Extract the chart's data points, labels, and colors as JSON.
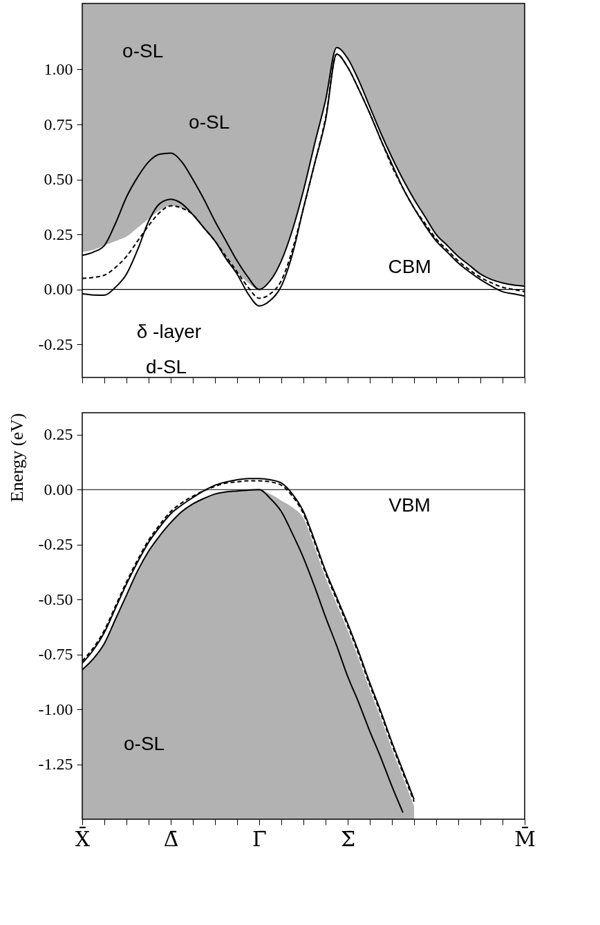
{
  "chart_data": [
    {
      "type": "line",
      "categories": [
        null,
        null,
        null,
        null,
        null,
        null,
        null,
        null,
        null,
        null,
        null,
        null,
        null,
        null,
        null,
        null,
        null,
        null,
        null,
        null,
        null,
        null,
        null,
        null,
        null,
        null,
        null,
        null,
        null,
        null,
        null,
        null,
        null,
        null,
        null,
        null,
        null,
        null,
        null,
        null,
        null
      ],
      "ylim": [
        -0.4,
        1.3
      ],
      "yticks": [
        {
          "value": -0.25,
          "label": "-0.25"
        },
        {
          "value": 0,
          "label": "0.00"
        },
        {
          "value": 0.25,
          "label": "0.25"
        },
        {
          "value": 0.5,
          "label": "0.50"
        },
        {
          "value": 0.75,
          "label": "0.75"
        },
        {
          "value": 1,
          "label": "1.00"
        }
      ],
      "tick_labels": "y",
      "grid": false,
      "series": [
        {
          "type": "line",
          "color": "#000000",
          "line_style": "solid",
          "values": [
            0.155,
            0.17,
            0.2,
            0.3,
            0.42,
            0.51,
            0.58,
            0.615,
            0.62,
            0.58,
            0.5,
            0.41,
            0.31,
            0.22,
            0.13,
            0.055,
            0,
            0.04,
            0.13,
            0.27,
            0.45,
            0.66,
            0.86,
            1.1,
            1.05,
            0.95,
            0.83,
            0.71,
            0.6,
            0.5,
            0.41,
            0.33,
            0.25,
            0.2,
            0.15,
            0.11,
            0.07,
            0.045,
            0.03,
            0.02,
            0.015
          ],
          "lower": [
            0.17,
            0.18,
            0.2,
            0.22,
            0.24,
            0.28,
            0.32,
            0.36,
            0.38,
            0.37,
            0.34,
            0.28,
            0.22,
            0.15,
            0.08,
            0.03,
            0,
            0.04,
            0.13,
            0.27,
            0.45,
            0.66,
            0.86,
            1.1,
            1.05,
            0.95,
            0.83,
            0.71,
            0.6,
            0.5,
            0.41,
            0.33,
            0.25,
            0.2,
            0.15,
            0.11,
            0.07,
            0.045,
            0.03,
            0.02,
            0.015
          ],
          "upper": [
            1.3,
            1.3,
            1.3,
            1.3,
            1.3,
            1.3,
            1.3,
            1.3,
            1.3,
            1.3,
            1.3,
            1.3,
            1.3,
            1.3,
            1.3,
            1.3,
            1.3,
            1.3,
            1.3,
            1.3,
            1.3,
            1.3,
            1.3,
            1.3,
            1.3,
            1.3,
            1.3,
            1.3,
            1.3,
            1.3,
            1.3,
            1.3,
            1.3,
            1.3,
            1.3,
            1.3,
            1.3,
            1.3,
            1.3,
            1.3,
            1.3
          ]
        },
        {
          "type": "line",
          "color": "#000000",
          "line_style": "dashed",
          "values": [
            0.05,
            0.055,
            0.065,
            0.1,
            0.15,
            0.22,
            0.29,
            0.35,
            0.38,
            0.37,
            0.34,
            0.28,
            0.22,
            0.15,
            0.08,
            0.01,
            -0.04,
            -0.02,
            0.04,
            0.18,
            0.37,
            0.57,
            0.78,
            1.07,
            1.01,
            0.91,
            0.8,
            0.68,
            0.56,
            0.46,
            0.37,
            0.3,
            0.23,
            0.18,
            0.13,
            0.09,
            0.055,
            0.03,
            0.01,
            0,
            -0.01
          ]
        },
        {
          "type": "line",
          "color": "#000000",
          "line_style": "solid",
          "values": [
            -0.02,
            -0.025,
            -0.026,
            0.01,
            0.07,
            0.18,
            0.31,
            0.39,
            0.41,
            0.39,
            0.34,
            0.28,
            0.22,
            0.14,
            0.07,
            -0.02,
            -0.075,
            -0.05,
            0.015,
            0.16,
            0.37,
            0.57,
            0.77,
            1.07,
            1.01,
            0.91,
            0.8,
            0.68,
            0.57,
            0.46,
            0.37,
            0.29,
            0.22,
            0.17,
            0.12,
            0.08,
            0.045,
            0.015,
            -0.01,
            -0.02,
            -0.03
          ]
        }
      ],
      "ref_lines": [
        {
          "axis": "y",
          "value": 0,
          "color": "#000000"
        }
      ],
      "annotations": [
        "o-SL",
        "o-SL",
        "δ -layer",
        "CBM",
        "d-SL"
      ]
    },
    {
      "type": "line",
      "categories": [
        "X̄",
        null,
        null,
        null,
        null,
        null,
        null,
        null,
        "Δ̄",
        null,
        null,
        null,
        null,
        null,
        null,
        null,
        "Γ̄",
        null,
        null,
        null,
        null,
        null,
        null,
        null,
        "Σ̄",
        null,
        null,
        null,
        null,
        null,
        null,
        null,
        null,
        null,
        null,
        null,
        null,
        null,
        null,
        null,
        "M̄"
      ],
      "ylim": [
        -1.5,
        0.35
      ],
      "ylabel": "Energy  (eV)",
      "yticks": [
        {
          "value": -1.25,
          "label": "-1.25"
        },
        {
          "value": -1,
          "label": "-1.00"
        },
        {
          "value": -0.75,
          "label": "-0.75"
        },
        {
          "value": -0.5,
          "label": "-0.50"
        },
        {
          "value": -0.25,
          "label": "-0.25"
        },
        {
          "value": 0,
          "label": "0.00"
        },
        {
          "value": 0.25,
          "label": "0.25"
        }
      ],
      "grid": false,
      "series": [
        {
          "type": "line",
          "color": "#000000",
          "line_style": "solid",
          "values": [
            -0.82,
            -0.77,
            -0.7,
            -0.59,
            -0.48,
            -0.37,
            -0.28,
            -0.21,
            -0.15,
            -0.1,
            -0.065,
            -0.04,
            -0.02,
            -0.01,
            -0.006,
            -0.002,
            0,
            -0.04,
            -0.1,
            -0.2,
            -0.31,
            -0.44,
            -0.58,
            -0.71,
            -0.85,
            -0.97,
            -1.1,
            -1.22,
            -1.35,
            -1.47,
            null,
            null,
            null,
            null,
            null,
            null,
            null,
            null,
            null,
            null,
            null
          ],
          "upper": [
            -0.82,
            -0.77,
            -0.7,
            -0.59,
            -0.48,
            -0.37,
            -0.28,
            -0.21,
            -0.15,
            -0.1,
            -0.065,
            -0.04,
            -0.02,
            -0.01,
            -0.006,
            -0.002,
            0,
            -0.02,
            -0.05,
            -0.08,
            -0.13,
            -0.26,
            -0.4,
            -0.52,
            -0.64,
            -0.77,
            -0.91,
            -1.04,
            -1.18,
            -1.31,
            -1.44,
            null,
            null,
            null,
            null,
            null,
            null,
            null,
            null,
            null,
            null
          ],
          "lower": [
            -1.5,
            -1.5,
            -1.5,
            -1.5,
            -1.5,
            -1.5,
            -1.5,
            -1.5,
            -1.5,
            -1.5,
            -1.5,
            -1.5,
            -1.5,
            -1.5,
            -1.5,
            -1.5,
            -1.5,
            -1.5,
            -1.5,
            -1.5,
            -1.5,
            -1.5,
            -1.5,
            -1.5,
            -1.5,
            -1.5,
            -1.5,
            -1.5,
            -1.5,
            -1.5,
            -1.5,
            null,
            null,
            null,
            null,
            null,
            null,
            null,
            null,
            null,
            null
          ]
        },
        {
          "type": "line",
          "color": "#000000",
          "line_style": "dashed",
          "values": [
            -0.78,
            -0.72,
            -0.64,
            -0.53,
            -0.42,
            -0.32,
            -0.23,
            -0.16,
            -0.1,
            -0.06,
            -0.03,
            -0.005,
            0.015,
            0.03,
            0.035,
            0.04,
            0.04,
            0.035,
            0.02,
            -0.03,
            -0.11,
            -0.24,
            -0.38,
            -0.5,
            -0.62,
            -0.75,
            -0.89,
            -1.02,
            -1.16,
            -1.29,
            -1.42,
            null,
            null,
            null,
            null,
            null,
            null,
            null,
            null,
            null,
            null
          ]
        },
        {
          "type": "line",
          "color": "#000000",
          "line_style": "solid",
          "values": [
            -0.79,
            -0.73,
            -0.65,
            -0.54,
            -0.43,
            -0.33,
            -0.24,
            -0.17,
            -0.11,
            -0.07,
            -0.036,
            -0.005,
            0.02,
            0.035,
            0.045,
            0.05,
            0.05,
            0.045,
            0.03,
            -0.02,
            -0.1,
            -0.23,
            -0.37,
            -0.49,
            -0.61,
            -0.74,
            -0.88,
            -1.01,
            -1.15,
            -1.28,
            -1.41,
            null,
            null,
            null,
            null,
            null,
            null,
            null,
            null,
            null,
            null
          ]
        }
      ],
      "ref_lines": [
        {
          "axis": "y",
          "value": 0,
          "color": "#000000"
        }
      ],
      "annotations": [
        "VBM",
        "o-SL"
      ]
    }
  ]
}
